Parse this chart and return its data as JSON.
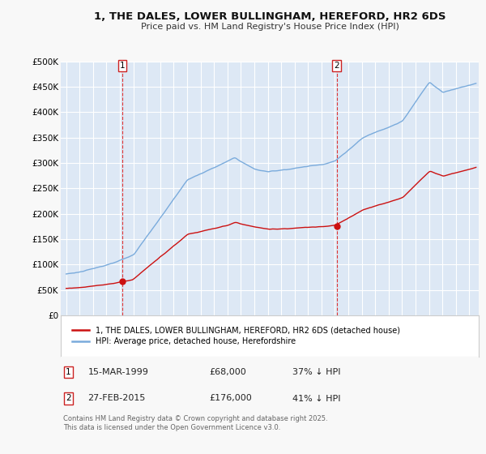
{
  "title": "1, THE DALES, LOWER BULLINGHAM, HEREFORD, HR2 6DS",
  "subtitle": "Price paid vs. HM Land Registry's House Price Index (HPI)",
  "legend_entry1": "1, THE DALES, LOWER BULLINGHAM, HEREFORD, HR2 6DS (detached house)",
  "legend_entry2": "HPI: Average price, detached house, Herefordshire",
  "annotation1_date": "15-MAR-1999",
  "annotation1_price": "£68,000",
  "annotation1_hpi": "37% ↓ HPI",
  "annotation2_date": "27-FEB-2015",
  "annotation2_price": "£176,000",
  "annotation2_hpi": "41% ↓ HPI",
  "footer": "Contains HM Land Registry data © Crown copyright and database right 2025.\nThis data is licensed under the Open Government Licence v3.0.",
  "hpi_color": "#7aabdc",
  "price_color": "#cc1111",
  "bg_color": "#f8f8f8",
  "plot_bg_color": "#dde8f5",
  "grid_color": "#ffffff",
  "vline_color": "#dd3333",
  "ylim_min": 0,
  "ylim_max": 500000,
  "sale1_year": 1999.21,
  "sale2_year": 2015.13,
  "sale1_value": 68000,
  "sale2_value": 176000
}
